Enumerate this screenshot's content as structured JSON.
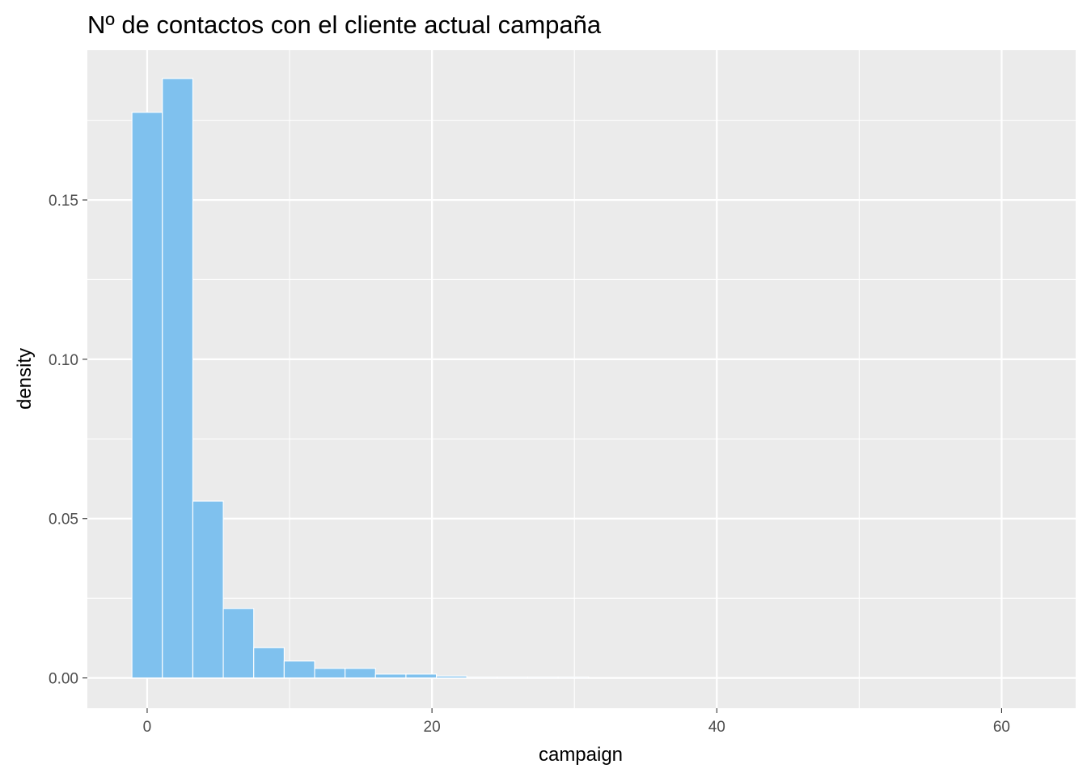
{
  "chart_data": {
    "type": "bar",
    "subtype": "histogram",
    "title": "Nº de contactos con el cliente actual campaña",
    "xlabel": "campaign",
    "ylabel": "density",
    "xlim": [
      -4.2,
      65.2
    ],
    "ylim": [
      -0.0095,
      0.197
    ],
    "x_ticks": [
      0,
      20,
      40,
      60
    ],
    "x_tick_labels": [
      "0",
      "20",
      "40",
      "60"
    ],
    "y_ticks": [
      0.0,
      0.05,
      0.1,
      0.15
    ],
    "y_tick_labels": [
      "0.00",
      "0.05",
      "0.10",
      "0.15"
    ],
    "grid": true,
    "bin_width": 2.1379,
    "bins": [
      {
        "x0": -1.069,
        "x1": 1.069,
        "value": 0.1775
      },
      {
        "x0": 1.069,
        "x1": 3.207,
        "value": 0.1881
      },
      {
        "x0": 3.207,
        "x1": 5.345,
        "value": 0.0555
      },
      {
        "x0": 5.345,
        "x1": 7.483,
        "value": 0.0218
      },
      {
        "x0": 7.483,
        "x1": 9.621,
        "value": 0.0095
      },
      {
        "x0": 9.621,
        "x1": 11.759,
        "value": 0.0053
      },
      {
        "x0": 11.759,
        "x1": 13.897,
        "value": 0.003
      },
      {
        "x0": 13.897,
        "x1": 16.034,
        "value": 0.003
      },
      {
        "x0": 16.034,
        "x1": 18.172,
        "value": 0.0012
      },
      {
        "x0": 18.172,
        "x1": 20.31,
        "value": 0.0012
      },
      {
        "x0": 20.31,
        "x1": 22.448,
        "value": 0.0006
      },
      {
        "x0": 22.448,
        "x1": 24.586,
        "value": 0.0003
      },
      {
        "x0": 24.586,
        "x1": 26.724,
        "value": 0.0003
      },
      {
        "x0": 26.724,
        "x1": 28.862,
        "value": 0.0003
      },
      {
        "x0": 28.862,
        "x1": 31.0,
        "value": 0.0003
      },
      {
        "x0": 31.0,
        "x1": 33.138,
        "value": 0.0001
      },
      {
        "x0": 33.138,
        "x1": 35.276,
        "value": 0.0001
      },
      {
        "x0": 35.276,
        "x1": 37.414,
        "value": 0.0001
      },
      {
        "x0": 37.414,
        "x1": 39.552,
        "value": 0.0001
      },
      {
        "x0": 39.552,
        "x1": 41.69,
        "value": 0.0001
      },
      {
        "x0": 41.69,
        "x1": 43.828,
        "value": 0.0001
      },
      {
        "x0": 43.828,
        "x1": 45.966,
        "value": 0.0001
      },
      {
        "x0": 45.966,
        "x1": 48.103,
        "value": 0.0
      },
      {
        "x0": 48.103,
        "x1": 50.241,
        "value": 0.0
      },
      {
        "x0": 50.241,
        "x1": 52.379,
        "value": 0.0
      },
      {
        "x0": 52.379,
        "x1": 54.517,
        "value": 0.0
      },
      {
        "x0": 54.517,
        "x1": 56.655,
        "value": 0.0001
      },
      {
        "x0": 56.655,
        "x1": 58.793,
        "value": 0.0001
      },
      {
        "x0": 58.793,
        "x1": 60.931,
        "value": 0.0
      },
      {
        "x0": 60.931,
        "x1": 63.069,
        "value": 0.0001
      }
    ],
    "colors": {
      "bar_fill": "#7fc1ee",
      "bar_outline": "#ffffff",
      "panel_background": "#ebebeb",
      "grid": "#ffffff"
    }
  }
}
